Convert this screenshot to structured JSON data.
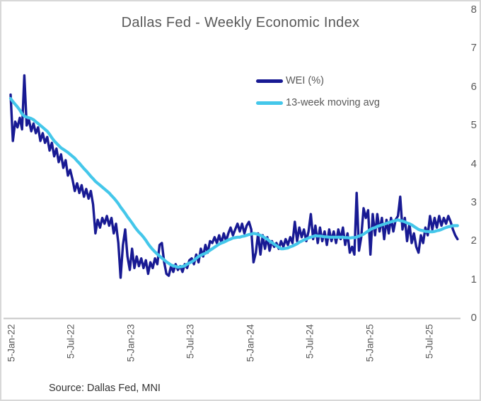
{
  "title": "Dallas Fed - Weekly Economic Index",
  "source": "Source: Dallas Fed, MNI",
  "legend": {
    "wei_label": "WEI (%)",
    "ma_label": "13-week moving avg"
  },
  "colors": {
    "wei_line": "#181A93",
    "ma_line": "#44C7EA",
    "axis_line": "#C6C6C6",
    "axis_text": "#595959",
    "title_text": "#595959",
    "source_text": "#333333",
    "card_border": "#D8D8D8"
  },
  "chart_data": {
    "type": "line",
    "title": "Dallas Fed - Weekly Economic Index",
    "xlabel": "",
    "ylabel": "",
    "x_start": "5-Jan-22",
    "x_interval": "weekly",
    "x_ticks": [
      "5-Jan-22",
      "5-Jul-22",
      "5-Jan-23",
      "5-Jul-23",
      "5-Jan-24",
      "5-Jul-24",
      "5-Jan-25",
      "5-Jul-25"
    ],
    "y_ticks": [
      0,
      1,
      2,
      3,
      4,
      5,
      6,
      7,
      8
    ],
    "ylim": [
      0,
      8
    ],
    "grid": false,
    "legend_position": "upper-center-right",
    "series": [
      {
        "name": "WEI (%)",
        "color": "#181A93",
        "values": [
          5.8,
          4.6,
          5.1,
          4.95,
          5.2,
          4.9,
          6.3,
          5.0,
          5.15,
          4.85,
          5.05,
          4.8,
          4.95,
          4.6,
          4.8,
          4.55,
          4.7,
          4.35,
          4.55,
          4.2,
          4.4,
          4.05,
          4.25,
          3.9,
          4.1,
          3.7,
          3.85,
          3.6,
          3.3,
          3.5,
          3.25,
          3.45,
          3.15,
          3.35,
          3.1,
          3.3,
          2.95,
          2.2,
          2.55,
          2.35,
          2.6,
          2.45,
          2.65,
          2.4,
          2.6,
          2.2,
          2.45,
          1.95,
          1.05,
          1.9,
          2.3,
          1.6,
          1.25,
          1.8,
          1.3,
          1.6,
          1.35,
          1.55,
          1.3,
          1.5,
          1.15,
          1.45,
          1.3,
          1.55,
          1.4,
          1.9,
          1.95,
          1.45,
          1.15,
          1.1,
          1.35,
          1.2,
          1.4,
          1.25,
          1.35,
          1.2,
          1.4,
          1.3,
          1.5,
          1.55,
          1.4,
          1.65,
          1.45,
          1.8,
          1.6,
          1.9,
          1.7,
          2.0,
          1.95,
          2.1,
          1.95,
          2.15,
          1.95,
          2.2,
          2.0,
          2.2,
          2.35,
          2.15,
          2.3,
          2.45,
          2.25,
          2.45,
          2.2,
          2.4,
          2.5,
          2.3,
          1.45,
          1.7,
          2.2,
          1.65,
          2.15,
          1.8,
          2.1,
          1.75,
          2.0,
          1.85,
          1.95,
          1.8,
          2.0,
          1.85,
          2.05,
          1.9,
          2.1,
          1.95,
          2.5,
          2.0,
          2.35,
          2.1,
          2.3,
          2.0,
          2.25,
          2.7,
          2.05,
          2.4,
          1.95,
          2.35,
          2.0,
          2.25,
          1.9,
          2.3,
          2.0,
          2.25,
          1.95,
          2.3,
          2.05,
          2.35,
          1.9,
          2.2,
          1.7,
          1.85,
          1.65,
          3.25,
          1.75,
          2.1,
          2.85,
          2.6,
          2.8,
          1.65,
          2.7,
          2.15,
          2.7,
          2.25,
          2.6,
          2.05,
          2.55,
          2.2,
          2.6,
          2.25,
          2.55,
          2.65,
          3.15,
          2.3,
          2.6,
          2.0,
          2.45,
          1.95,
          2.2,
          1.85,
          1.7,
          2.15,
          1.95,
          2.35,
          2.15,
          2.65,
          2.3,
          2.6,
          2.35,
          2.65,
          2.4,
          2.6,
          2.45,
          2.65,
          2.5,
          2.3,
          2.15,
          2.05
        ]
      },
      {
        "name": "13-week moving avg",
        "color": "#44C7EA",
        "values": [
          5.7,
          5.62,
          5.55,
          5.48,
          5.4,
          5.3,
          5.24,
          5.22,
          5.2,
          5.18,
          5.15,
          5.1,
          5.05,
          5.0,
          4.95,
          4.9,
          4.85,
          4.77,
          4.68,
          4.6,
          4.54,
          4.48,
          4.42,
          4.38,
          4.34,
          4.3,
          4.25,
          4.2,
          4.15,
          4.08,
          4.02,
          3.95,
          3.88,
          3.82,
          3.75,
          3.68,
          3.62,
          3.55,
          3.5,
          3.45,
          3.4,
          3.35,
          3.3,
          3.25,
          3.18,
          3.12,
          3.05,
          2.97,
          2.88,
          2.8,
          2.72,
          2.63,
          2.55,
          2.47,
          2.38,
          2.3,
          2.23,
          2.17,
          2.1,
          2.02,
          1.93,
          1.85,
          1.78,
          1.72,
          1.66,
          1.61,
          1.56,
          1.51,
          1.46,
          1.42,
          1.38,
          1.36,
          1.34,
          1.32,
          1.33,
          1.34,
          1.36,
          1.4,
          1.43,
          1.46,
          1.5,
          1.55,
          1.6,
          1.63,
          1.66,
          1.68,
          1.72,
          1.76,
          1.8,
          1.84,
          1.88,
          1.92,
          1.95,
          1.97,
          2.0,
          2.03,
          2.05,
          2.08,
          2.09,
          2.1,
          2.1,
          2.12,
          2.13,
          2.15,
          2.17,
          2.18,
          2.2,
          2.19,
          2.17,
          2.15,
          2.12,
          2.08,
          2.05,
          2.0,
          1.96,
          1.92,
          1.88,
          1.84,
          1.8,
          1.8,
          1.81,
          1.82,
          1.85,
          1.87,
          1.9,
          1.93,
          1.97,
          2.0,
          2.03,
          2.05,
          2.08,
          2.1,
          2.12,
          2.14,
          2.13,
          2.13,
          2.12,
          2.11,
          2.11,
          2.1,
          2.1,
          2.1,
          2.1,
          2.1,
          2.1,
          2.1,
          2.09,
          2.09,
          2.08,
          2.09,
          2.09,
          2.1,
          2.13,
          2.15,
          2.18,
          2.22,
          2.26,
          2.3,
          2.33,
          2.35,
          2.38,
          2.4,
          2.42,
          2.44,
          2.46,
          2.48,
          2.5,
          2.52,
          2.53,
          2.55,
          2.53,
          2.52,
          2.5,
          2.47,
          2.45,
          2.42,
          2.38,
          2.34,
          2.3,
          2.28,
          2.27,
          2.25,
          2.25,
          2.24,
          2.24,
          2.25,
          2.27,
          2.28,
          2.3,
          2.33,
          2.35,
          2.37,
          2.38,
          2.4,
          2.4,
          2.4
        ]
      }
    ]
  }
}
